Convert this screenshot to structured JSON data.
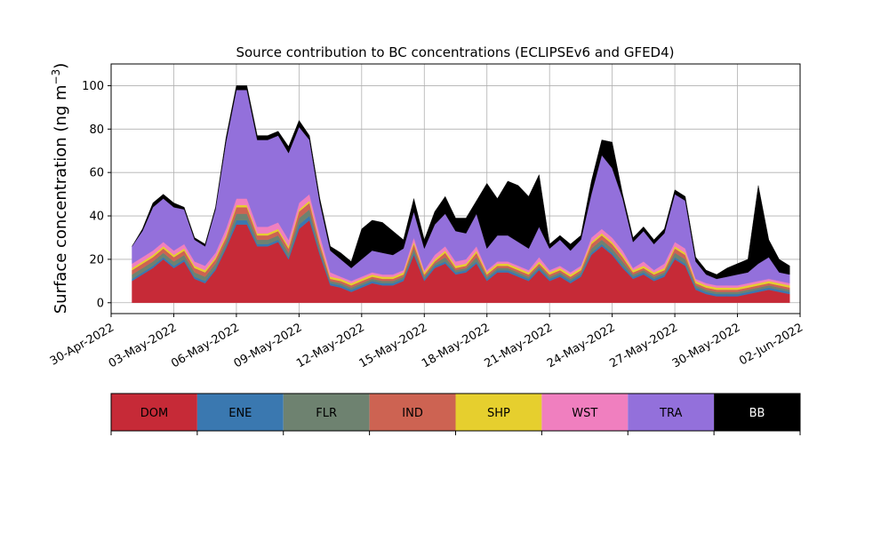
{
  "chart_data": {
    "type": "area",
    "stacked": true,
    "title": "Source contribution to BC concentrations (ECLIPSEv6 and GFED4)",
    "ylabel_main": "Surface concentration (ng m",
    "ylabel_sup": "−3",
    "ylabel_close": ")",
    "xlabel": "",
    "ylim": [
      -5,
      110
    ],
    "yticks": [
      0,
      20,
      40,
      60,
      80,
      100
    ],
    "xlim": [
      "2022-04-30",
      "2022-06-02"
    ],
    "xticks": [
      "2022-04-30",
      "2022-05-03",
      "2022-05-06",
      "2022-05-09",
      "2022-05-12",
      "2022-05-15",
      "2022-05-18",
      "2022-05-21",
      "2022-05-24",
      "2022-05-27",
      "2022-05-30",
      "2022-06-02"
    ],
    "xtick_labels": [
      "30-Apr-2022",
      "03-May-2022",
      "06-May-2022",
      "09-May-2022",
      "12-May-2022",
      "15-May-2022",
      "18-May-2022",
      "21-May-2022",
      "24-May-2022",
      "27-May-2022",
      "30-May-2022",
      "02-Jun-2022"
    ],
    "grid": true,
    "legend": "colorbar below plot",
    "x": [
      "2022-05-01",
      "2022-05-01T12:00",
      "2022-05-02",
      "2022-05-02T12:00",
      "2022-05-03",
      "2022-05-03T12:00",
      "2022-05-04",
      "2022-05-04T12:00",
      "2022-05-05",
      "2022-05-05T12:00",
      "2022-05-06",
      "2022-05-06T12:00",
      "2022-05-07",
      "2022-05-07T12:00",
      "2022-05-08",
      "2022-05-08T12:00",
      "2022-05-09",
      "2022-05-09T12:00",
      "2022-05-10",
      "2022-05-10T12:00",
      "2022-05-11",
      "2022-05-11T12:00",
      "2022-05-12",
      "2022-05-12T12:00",
      "2022-05-13",
      "2022-05-13T12:00",
      "2022-05-14",
      "2022-05-14T12:00",
      "2022-05-15",
      "2022-05-15T12:00",
      "2022-05-16",
      "2022-05-16T12:00",
      "2022-05-17",
      "2022-05-17T12:00",
      "2022-05-18",
      "2022-05-18T12:00",
      "2022-05-19",
      "2022-05-19T12:00",
      "2022-05-20",
      "2022-05-20T12:00",
      "2022-05-21",
      "2022-05-21T12:00",
      "2022-05-22",
      "2022-05-22T12:00",
      "2022-05-23",
      "2022-05-23T12:00",
      "2022-05-24",
      "2022-05-24T12:00",
      "2022-05-25",
      "2022-05-25T12:00",
      "2022-05-26",
      "2022-05-26T12:00",
      "2022-05-27",
      "2022-05-27T12:00",
      "2022-05-28",
      "2022-05-28T12:00",
      "2022-05-29",
      "2022-05-29T12:00",
      "2022-05-30",
      "2022-05-30T12:00",
      "2022-05-31",
      "2022-05-31T12:00",
      "2022-06-01",
      "2022-06-01T12:00"
    ],
    "series": [
      {
        "name": "DOM",
        "color": "#c62a37",
        "values": [
          10,
          13,
          16,
          20,
          16,
          19,
          11,
          9,
          15,
          25,
          36,
          36,
          26,
          26,
          28,
          20,
          34,
          38,
          22,
          8,
          7,
          5,
          7,
          9,
          8,
          8,
          10,
          22,
          10,
          16,
          18,
          13,
          14,
          18,
          10,
          14,
          14,
          12,
          10,
          15,
          10,
          12,
          9,
          12,
          22,
          26,
          22,
          16,
          11,
          13,
          10,
          12,
          20,
          17,
          6,
          4,
          3,
          3,
          3,
          4,
          5,
          6,
          5,
          4
        ]
      },
      {
        "name": "ENE",
        "color": "#3a78b0",
        "values": [
          1,
          1,
          1,
          1,
          1,
          1,
          1,
          1,
          1,
          1,
          2,
          2,
          1,
          1,
          1,
          1,
          2,
          2,
          1,
          1,
          1,
          1,
          1,
          1,
          1,
          1,
          1,
          1,
          1,
          1,
          1,
          1,
          1,
          1,
          1,
          1,
          1,
          1,
          1,
          1,
          1,
          1,
          1,
          1,
          1,
          1,
          1,
          1,
          1,
          1,
          1,
          1,
          1,
          1,
          1,
          1,
          1,
          1,
          1,
          1,
          1,
          1,
          1,
          1
        ]
      },
      {
        "name": "FLR",
        "color": "#6e8270",
        "values": [
          2,
          2,
          2,
          2,
          2,
          2,
          2,
          2,
          2,
          2,
          3,
          3,
          2,
          2,
          2,
          2,
          3,
          3,
          2,
          1,
          1,
          1,
          1,
          1,
          1,
          1,
          1,
          2,
          1,
          1,
          2,
          1,
          1,
          2,
          1,
          1,
          1,
          1,
          1,
          1,
          1,
          1,
          1,
          1,
          2,
          2,
          2,
          2,
          1,
          1,
          1,
          1,
          2,
          2,
          1,
          1,
          1,
          1,
          1,
          1,
          1,
          1,
          1,
          1
        ]
      },
      {
        "name": "IND",
        "color": "#cd6352",
        "values": [
          2,
          2,
          2,
          2,
          2,
          2,
          2,
          2,
          2,
          2,
          3,
          3,
          2,
          2,
          2,
          2,
          3,
          3,
          2,
          1,
          1,
          1,
          1,
          1,
          1,
          1,
          1,
          2,
          1,
          1,
          2,
          1,
          1,
          2,
          1,
          1,
          1,
          1,
          1,
          1,
          1,
          1,
          1,
          1,
          2,
          2,
          2,
          2,
          1,
          1,
          1,
          1,
          2,
          2,
          1,
          1,
          1,
          1,
          1,
          1,
          1,
          1,
          1,
          1
        ]
      },
      {
        "name": "SHP",
        "color": "#e6cf2e",
        "values": [
          1,
          1,
          1,
          1,
          1,
          1,
          1,
          1,
          1,
          1,
          1,
          1,
          1,
          1,
          1,
          1,
          1,
          1,
          1,
          1,
          1,
          1,
          1,
          1,
          1,
          1,
          1,
          1,
          1,
          1,
          1,
          1,
          1,
          1,
          1,
          1,
          1,
          1,
          1,
          1,
          1,
          1,
          1,
          1,
          1,
          1,
          1,
          1,
          1,
          1,
          1,
          1,
          1,
          1,
          1,
          1,
          1,
          1,
          1,
          1,
          1,
          1,
          1,
          1
        ]
      },
      {
        "name": "WST",
        "color": "#f07fbf",
        "values": [
          2,
          2,
          2,
          2,
          2,
          2,
          2,
          2,
          2,
          3,
          3,
          3,
          3,
          3,
          3,
          3,
          3,
          3,
          3,
          2,
          1,
          1,
          1,
          1,
          1,
          1,
          1,
          2,
          1,
          2,
          2,
          2,
          2,
          2,
          1,
          1,
          1,
          1,
          1,
          2,
          1,
          1,
          1,
          1,
          2,
          2,
          2,
          2,
          1,
          2,
          1,
          2,
          2,
          2,
          1,
          1,
          1,
          1,
          1,
          1,
          1,
          1,
          1,
          1
        ]
      },
      {
        "name": "TRA",
        "color": "#9370db",
        "values": [
          8,
          12,
          20,
          20,
          20,
          16,
          10,
          9,
          20,
          40,
          50,
          50,
          40,
          40,
          40,
          40,
          35,
          25,
          15,
          10,
          8,
          6,
          8,
          10,
          10,
          9,
          10,
          12,
          10,
          14,
          15,
          14,
          12,
          15,
          10,
          12,
          12,
          11,
          10,
          14,
          10,
          12,
          10,
          12,
          20,
          34,
          32,
          24,
          12,
          14,
          12,
          14,
          22,
          22,
          8,
          4,
          3,
          4,
          5,
          5,
          8,
          10,
          4,
          4
        ]
      },
      {
        "name": "BB",
        "color": "#000000",
        "values": [
          0,
          1,
          2,
          2,
          2,
          1,
          1,
          1,
          1,
          2,
          2,
          2,
          2,
          2,
          2,
          3,
          3,
          2,
          2,
          2,
          3,
          3,
          14,
          14,
          14,
          11,
          4,
          6,
          4,
          6,
          8,
          6,
          7,
          6,
          30,
          17,
          25,
          26,
          24,
          24,
          2,
          2,
          3,
          2,
          6,
          7,
          12,
          2,
          2,
          2,
          2,
          2,
          2,
          2,
          2,
          2,
          2,
          4,
          5,
          6,
          36,
          8,
          6,
          4
        ]
      }
    ]
  }
}
